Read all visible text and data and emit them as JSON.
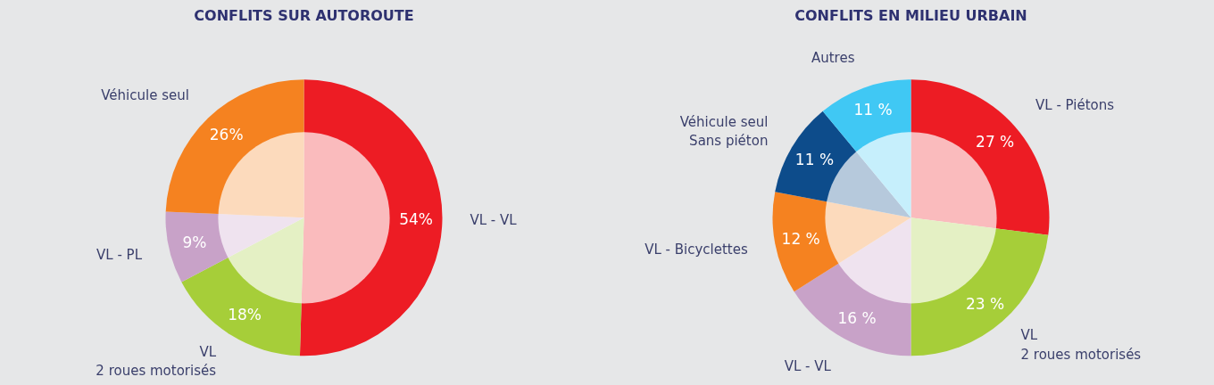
{
  "chart_data": [
    {
      "type": "donut",
      "title": "CONFLITS SUR AUTOROUTE",
      "categories": [
        "VL - VL",
        "VL\n2 roues motorisés",
        "VL - PL",
        "Véhicule seul"
      ],
      "values": [
        54,
        18,
        9,
        26
      ],
      "colors": [
        "#ed1c24",
        "#a6ce39",
        "#c8a2c8",
        "#f58220"
      ],
      "value_labels": [
        "54%",
        "18%",
        "9%",
        "26%"
      ]
    },
    {
      "type": "donut",
      "title": "CONFLITS EN MILIEU URBAIN",
      "categories": [
        "VL - Piétons",
        "VL\n2 roues motorisés",
        "VL - VL",
        "VL - Bicyclettes",
        "Véhicule seul\nSans piéton",
        "Autres"
      ],
      "values": [
        27,
        23,
        16,
        12,
        11,
        11
      ],
      "colors": [
        "#ed1c24",
        "#a6ce39",
        "#c8a2c8",
        "#f58220",
        "#0d4c8b",
        "#40c8f4"
      ],
      "value_labels": [
        "27 %",
        "23 %",
        "16 %",
        "12 %",
        "11 %",
        "11 %"
      ]
    }
  ]
}
